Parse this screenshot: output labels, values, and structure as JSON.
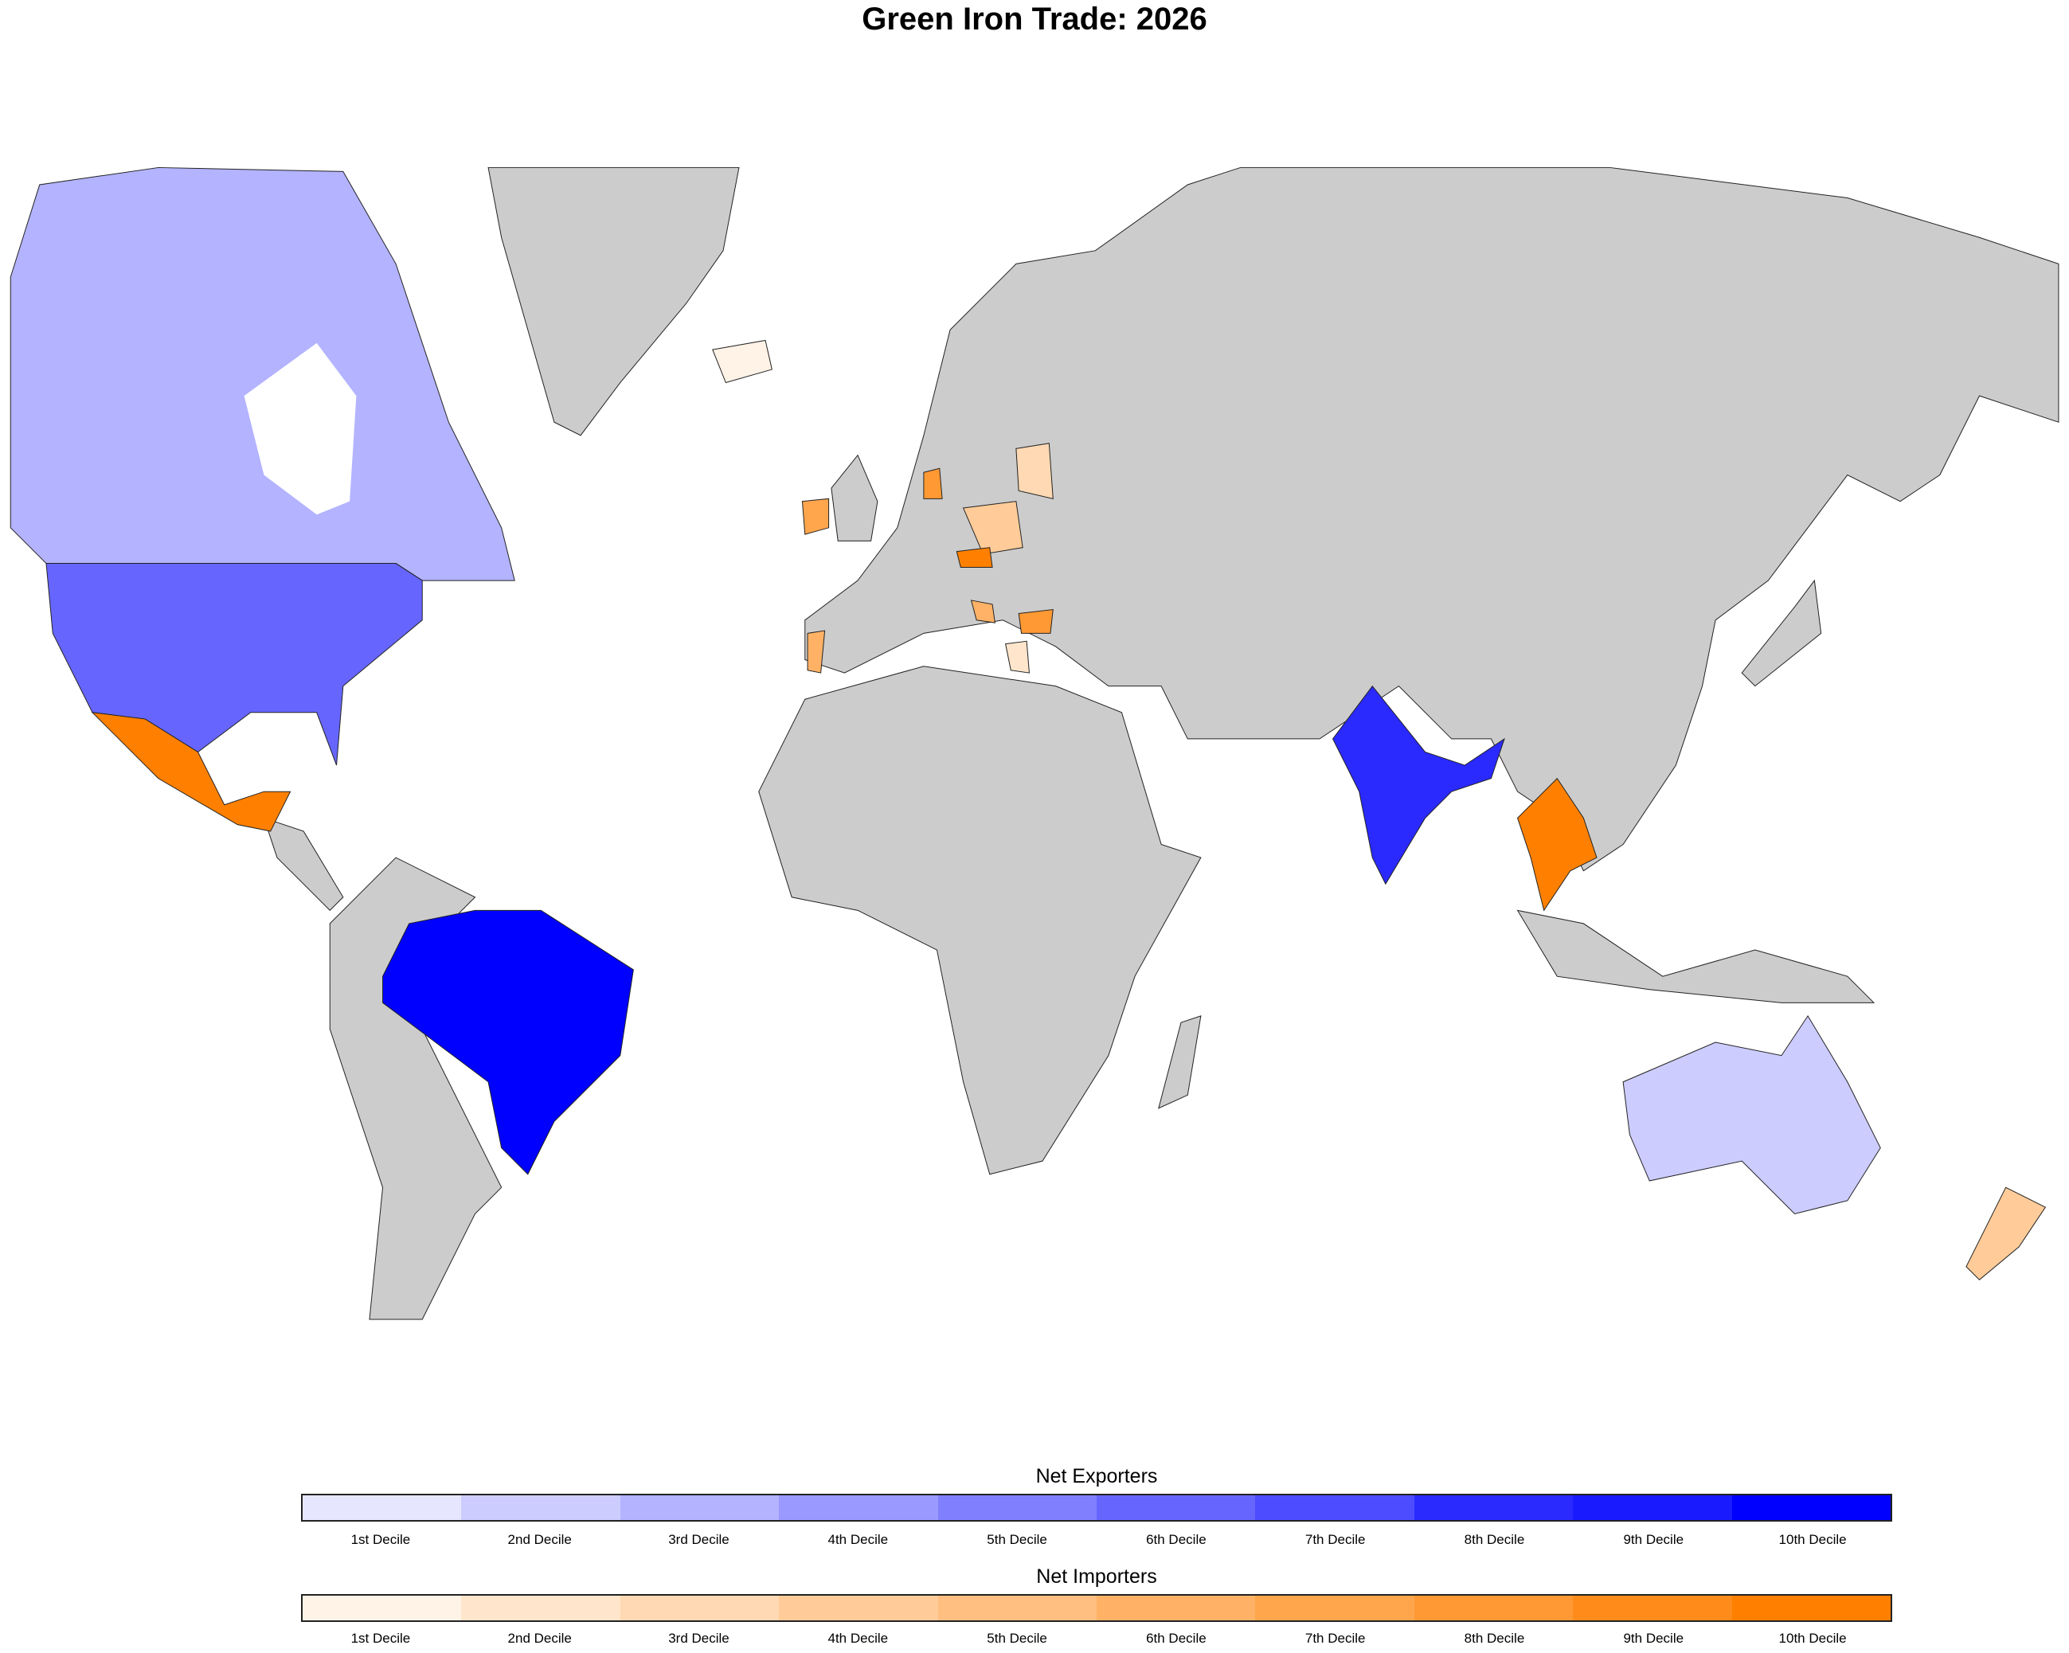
{
  "title": "Green Iron Trade: 2026",
  "colors": {
    "no_data": "#cccccc",
    "exporters": [
      "#e6e6ff",
      "#ccccff",
      "#b3b3ff",
      "#9999ff",
      "#8080ff",
      "#6666ff",
      "#4d4dff",
      "#2a2aff",
      "#1a1aff",
      "#0000ff"
    ],
    "importers": [
      "#fff2e6",
      "#ffe5cc",
      "#ffd9b3",
      "#ffcc99",
      "#ffbf80",
      "#ffb266",
      "#ffa64d",
      "#ff9933",
      "#ff8c1a",
      "#ff8000"
    ]
  },
  "legend": {
    "exporters_title": "Net Exporters",
    "importers_title": "Net Importers",
    "decile_labels": [
      "1st Decile",
      "2nd Decile",
      "3rd Decile",
      "4th Decile",
      "5th Decile",
      "6th Decile",
      "7th Decile",
      "8th Decile",
      "9th Decile",
      "10th Decile"
    ]
  },
  "countries": [
    {
      "name": "Canada",
      "group": "exporters",
      "decile": 3
    },
    {
      "name": "United States",
      "group": "exporters",
      "decile": 6
    },
    {
      "name": "Brazil",
      "group": "exporters",
      "decile": 10
    },
    {
      "name": "India",
      "group": "exporters",
      "decile": 8
    },
    {
      "name": "Australia",
      "group": "exporters",
      "decile": 2
    },
    {
      "name": "Mexico",
      "group": "importers",
      "decile": 10
    },
    {
      "name": "Thailand",
      "group": "importers",
      "decile": 10
    },
    {
      "name": "Vietnam",
      "group": "importers",
      "decile": 9
    },
    {
      "name": "New Zealand",
      "group": "importers",
      "decile": 4
    },
    {
      "name": "Poland",
      "group": "importers",
      "decile": 4
    },
    {
      "name": "Czechia",
      "group": "importers",
      "decile": 10
    },
    {
      "name": "Ireland",
      "group": "importers",
      "decile": 7
    },
    {
      "name": "Portugal",
      "group": "importers",
      "decile": 6
    },
    {
      "name": "Denmark",
      "group": "importers",
      "decile": 8
    },
    {
      "name": "Bulgaria",
      "group": "importers",
      "decile": 8
    },
    {
      "name": "Croatia",
      "group": "importers",
      "decile": 6
    },
    {
      "name": "Lithuania",
      "group": "importers",
      "decile": 3
    },
    {
      "name": "Latvia",
      "group": "importers",
      "decile": 3
    },
    {
      "name": "Greece",
      "group": "importers",
      "decile": 2
    },
    {
      "name": "Iceland",
      "group": "importers",
      "decile": 1
    }
  ]
}
